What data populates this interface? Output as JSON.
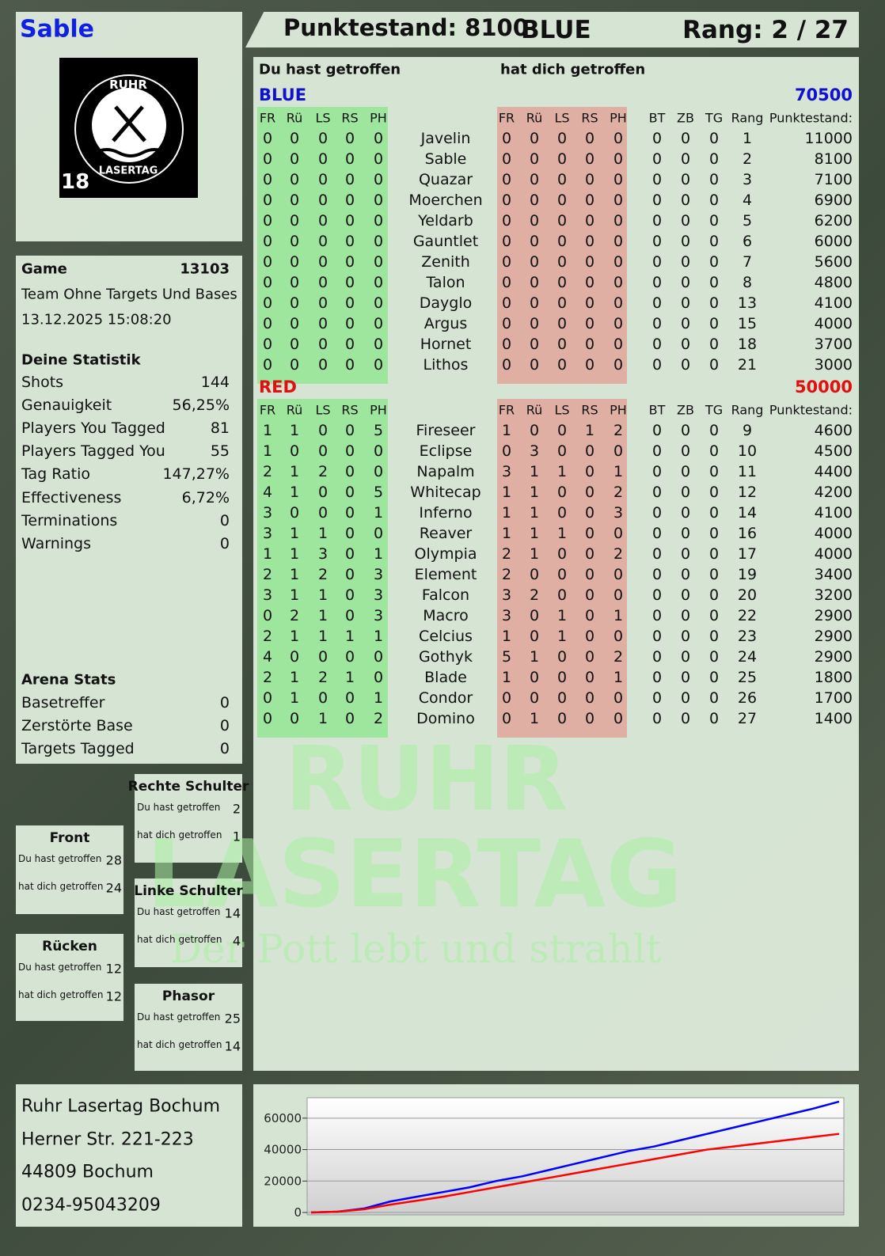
{
  "header": {
    "name": "Sable",
    "score": "Punktestand: 8100",
    "team": "BLUE",
    "rank": "Rang: 2 / 27"
  },
  "logo": {
    "top": "RUHR",
    "bottom": "LASERTAG",
    "number": "18"
  },
  "game": {
    "label": "Game",
    "id": "13103",
    "mode": "Team Ohne Targets Und Bases",
    "date": "13.12.2025 15:08:20"
  },
  "stats": {
    "title": "Deine Statistik",
    "rows": [
      [
        "Shots",
        "144"
      ],
      [
        "Genauigkeit",
        "56,25%"
      ],
      [
        "Players You Tagged",
        "81"
      ],
      [
        "Players Tagged You",
        "55"
      ],
      [
        "Tag Ratio",
        "147,27%"
      ],
      [
        "Effectiveness",
        "6,72%"
      ],
      [
        "Terminations",
        "0"
      ],
      [
        "Warnings",
        "0"
      ]
    ]
  },
  "arena": {
    "title": "Arena Stats",
    "rows": [
      [
        "Basetreffer",
        "0"
      ],
      [
        "Zerstörte Base",
        "0"
      ],
      [
        "Targets Tagged",
        "0"
      ]
    ]
  },
  "zones": [
    {
      "title": "Rechte Schulter",
      "rows": [
        [
          "Du hast getroffen",
          "2"
        ],
        [
          "hat dich getroffen",
          "1"
        ]
      ]
    },
    {
      "title": "Front",
      "rows": [
        [
          "Du hast getroffen",
          "28"
        ],
        [
          "hat dich getroffen",
          "24"
        ]
      ]
    },
    {
      "title": "Linke Schulter",
      "rows": [
        [
          "Du hast getroffen",
          "14"
        ],
        [
          "hat dich getroffen",
          "4"
        ]
      ]
    },
    {
      "title": "Rücken",
      "rows": [
        [
          "Du hast getroffen",
          "12"
        ],
        [
          "hat dich getroffen",
          "12"
        ]
      ]
    },
    {
      "title": "Phasor",
      "rows": [
        [
          "Du hast getroffen",
          "25"
        ],
        [
          "hat dich getroffen",
          "14"
        ]
      ]
    }
  ],
  "address": [
    "Ruhr Lasertag Bochum",
    "Herner Str. 221-223",
    "44809 Bochum",
    "0234-95043209"
  ],
  "watermark": {
    "line1": "RUHR",
    "line2": "LASERTAG",
    "slogan": "Der Pott lebt und strahlt"
  },
  "table": {
    "you_hit": "Du hast getroffen",
    "hit_you": "hat dich getroffen",
    "hit_columns": [
      "FR",
      "Rü",
      "LS",
      "RS",
      "PH"
    ],
    "stat_columns": [
      "BT",
      "ZB",
      "TG",
      "Rang",
      "Punktestand:"
    ],
    "teams": [
      {
        "name": "BLUE",
        "total": "70500",
        "color": "#1010d0",
        "players": [
          [
            "Javelin",
            [
              0,
              0,
              0,
              0,
              0
            ],
            [
              0,
              0,
              0,
              0,
              0
            ],
            [
              0,
              0,
              0,
              1,
              11000
            ]
          ],
          [
            "Sable",
            [
              0,
              0,
              0,
              0,
              0
            ],
            [
              0,
              0,
              0,
              0,
              0
            ],
            [
              0,
              0,
              0,
              2,
              8100
            ]
          ],
          [
            "Quazar",
            [
              0,
              0,
              0,
              0,
              0
            ],
            [
              0,
              0,
              0,
              0,
              0
            ],
            [
              0,
              0,
              0,
              3,
              7100
            ]
          ],
          [
            "Moerchen",
            [
              0,
              0,
              0,
              0,
              0
            ],
            [
              0,
              0,
              0,
              0,
              0
            ],
            [
              0,
              0,
              0,
              4,
              6900
            ]
          ],
          [
            "Yeldarb",
            [
              0,
              0,
              0,
              0,
              0
            ],
            [
              0,
              0,
              0,
              0,
              0
            ],
            [
              0,
              0,
              0,
              5,
              6200
            ]
          ],
          [
            "Gauntlet",
            [
              0,
              0,
              0,
              0,
              0
            ],
            [
              0,
              0,
              0,
              0,
              0
            ],
            [
              0,
              0,
              0,
              6,
              6000
            ]
          ],
          [
            "Zenith",
            [
              0,
              0,
              0,
              0,
              0
            ],
            [
              0,
              0,
              0,
              0,
              0
            ],
            [
              0,
              0,
              0,
              7,
              5600
            ]
          ],
          [
            "Talon",
            [
              0,
              0,
              0,
              0,
              0
            ],
            [
              0,
              0,
              0,
              0,
              0
            ],
            [
              0,
              0,
              0,
              8,
              4800
            ]
          ],
          [
            "Dayglo",
            [
              0,
              0,
              0,
              0,
              0
            ],
            [
              0,
              0,
              0,
              0,
              0
            ],
            [
              0,
              0,
              0,
              13,
              4100
            ]
          ],
          [
            "Argus",
            [
              0,
              0,
              0,
              0,
              0
            ],
            [
              0,
              0,
              0,
              0,
              0
            ],
            [
              0,
              0,
              0,
              15,
              4000
            ]
          ],
          [
            "Hornet",
            [
              0,
              0,
              0,
              0,
              0
            ],
            [
              0,
              0,
              0,
              0,
              0
            ],
            [
              0,
              0,
              0,
              18,
              3700
            ]
          ],
          [
            "Lithos",
            [
              0,
              0,
              0,
              0,
              0
            ],
            [
              0,
              0,
              0,
              0,
              0
            ],
            [
              0,
              0,
              0,
              21,
              3000
            ]
          ]
        ]
      },
      {
        "name": "RED",
        "total": "50000",
        "color": "#e01010",
        "players": [
          [
            "Fireseer",
            [
              1,
              1,
              0,
              0,
              5
            ],
            [
              1,
              0,
              0,
              1,
              2
            ],
            [
              0,
              0,
              0,
              9,
              4600
            ]
          ],
          [
            "Eclipse",
            [
              1,
              0,
              0,
              0,
              0
            ],
            [
              0,
              3,
              0,
              0,
              0
            ],
            [
              0,
              0,
              0,
              10,
              4500
            ]
          ],
          [
            "Napalm",
            [
              2,
              1,
              2,
              0,
              0
            ],
            [
              3,
              1,
              1,
              0,
              1
            ],
            [
              0,
              0,
              0,
              11,
              4400
            ]
          ],
          [
            "Whitecap",
            [
              4,
              1,
              0,
              0,
              5
            ],
            [
              1,
              1,
              0,
              0,
              2
            ],
            [
              0,
              0,
              0,
              12,
              4200
            ]
          ],
          [
            "Inferno",
            [
              3,
              0,
              0,
              0,
              1
            ],
            [
              1,
              1,
              0,
              0,
              3
            ],
            [
              0,
              0,
              0,
              14,
              4100
            ]
          ],
          [
            "Reaver",
            [
              3,
              1,
              1,
              0,
              0
            ],
            [
              1,
              1,
              1,
              0,
              0
            ],
            [
              0,
              0,
              0,
              16,
              4000
            ]
          ],
          [
            "Olympia",
            [
              1,
              1,
              3,
              0,
              1
            ],
            [
              2,
              1,
              0,
              0,
              2
            ],
            [
              0,
              0,
              0,
              17,
              4000
            ]
          ],
          [
            "Element",
            [
              2,
              1,
              2,
              0,
              3
            ],
            [
              2,
              0,
              0,
              0,
              0
            ],
            [
              0,
              0,
              0,
              19,
              3400
            ]
          ],
          [
            "Falcon",
            [
              3,
              1,
              1,
              0,
              3
            ],
            [
              3,
              2,
              0,
              0,
              0
            ],
            [
              0,
              0,
              0,
              20,
              3200
            ]
          ],
          [
            "Macro",
            [
              0,
              2,
              1,
              0,
              3
            ],
            [
              3,
              0,
              1,
              0,
              1
            ],
            [
              0,
              0,
              0,
              22,
              2900
            ]
          ],
          [
            "Celcius",
            [
              2,
              1,
              1,
              1,
              1
            ],
            [
              1,
              0,
              1,
              0,
              0
            ],
            [
              0,
              0,
              0,
              23,
              2900
            ]
          ],
          [
            "Gothyk",
            [
              4,
              0,
              0,
              0,
              0
            ],
            [
              5,
              1,
              0,
              0,
              2
            ],
            [
              0,
              0,
              0,
              24,
              2900
            ]
          ],
          [
            "Blade",
            [
              2,
              1,
              2,
              1,
              0
            ],
            [
              1,
              0,
              0,
              0,
              1
            ],
            [
              0,
              0,
              0,
              25,
              1800
            ]
          ],
          [
            "Condor",
            [
              0,
              1,
              0,
              0,
              1
            ],
            [
              0,
              0,
              0,
              0,
              0
            ],
            [
              0,
              0,
              0,
              26,
              1700
            ]
          ],
          [
            "Domino",
            [
              0,
              0,
              1,
              0,
              2
            ],
            [
              0,
              1,
              0,
              0,
              0
            ],
            [
              0,
              0,
              0,
              27,
              1400
            ]
          ]
        ]
      }
    ]
  },
  "chart_data": {
    "type": "line",
    "categories": [
      null,
      null,
      null,
      null,
      null,
      null,
      null,
      null,
      null,
      null,
      null,
      null,
      null,
      null,
      null,
      null,
      null,
      null,
      null,
      null,
      null
    ],
    "series": [
      {
        "color": "#0000ff",
        "values": [
          0,
          500,
          2500,
          7000,
          10000,
          13000,
          16000,
          20000,
          23000,
          27000,
          31000,
          35000,
          39000,
          42000,
          46000,
          50000,
          54000,
          58000,
          62000,
          66000,
          70500
        ]
      },
      {
        "color": "#ff0000",
        "values": [
          0,
          500,
          2000,
          5000,
          7500,
          10000,
          13000,
          16000,
          19000,
          22000,
          25000,
          28000,
          31000,
          34000,
          37000,
          40000,
          42000,
          44000,
          46000,
          48000,
          50000
        ]
      }
    ],
    "ylim": [
      -1500,
      73000
    ],
    "yticks": [
      0,
      20000,
      40000,
      60000
    ],
    "grid": true
  }
}
